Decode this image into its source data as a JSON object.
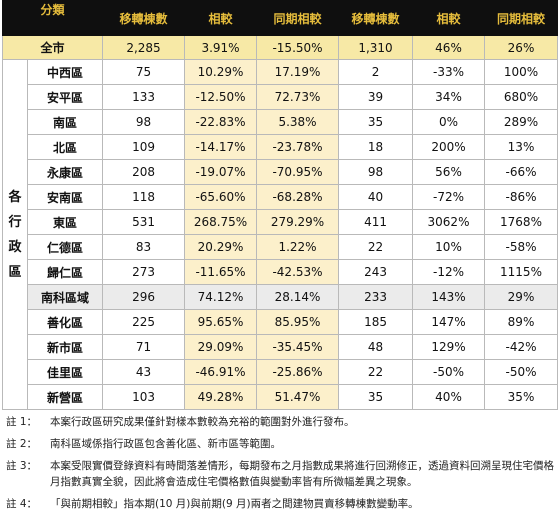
{
  "header": {
    "category": "分類",
    "col1": "移轉棟數",
    "col2": "相較",
    "col3": "同期相較",
    "col4": "移轉棟數",
    "col5": "相較",
    "col6": "同期相較"
  },
  "total": {
    "name": "全市",
    "values": [
      "2,285",
      "3.91%",
      "-15.50%",
      "1,310",
      "46%",
      "26%"
    ]
  },
  "group_label": [
    "各",
    "行",
    "政",
    "區"
  ],
  "districts": [
    {
      "name": "中西區",
      "values": [
        "75",
        "10.29%",
        "17.19%",
        "2",
        "-33%",
        "100%"
      ]
    },
    {
      "name": "安平區",
      "values": [
        "133",
        "-12.50%",
        "72.73%",
        "39",
        "34%",
        "680%"
      ]
    },
    {
      "name": "南區",
      "values": [
        "98",
        "-22.83%",
        "5.38%",
        "35",
        "0%",
        "289%"
      ]
    },
    {
      "name": "北區",
      "values": [
        "109",
        "-14.17%",
        "-23.78%",
        "18",
        "200%",
        "13%"
      ]
    },
    {
      "name": "永康區",
      "values": [
        "208",
        "-19.07%",
        "-70.95%",
        "98",
        "56%",
        "-66%"
      ]
    },
    {
      "name": "安南區",
      "values": [
        "118",
        "-65.60%",
        "-68.28%",
        "40",
        "-72%",
        "-86%"
      ]
    },
    {
      "name": "東區",
      "values": [
        "531",
        "268.75%",
        "279.29%",
        "411",
        "3062%",
        "1768%"
      ]
    },
    {
      "name": "仁德區",
      "values": [
        "83",
        "20.29%",
        "1.22%",
        "22",
        "10%",
        "-58%"
      ]
    },
    {
      "name": "歸仁區",
      "values": [
        "273",
        "-11.65%",
        "-42.53%",
        "243",
        "-12%",
        "1115%"
      ]
    }
  ],
  "nanke": {
    "name": "南科區域",
    "values": [
      "296",
      "74.12%",
      "28.14%",
      "233",
      "143%",
      "29%"
    ]
  },
  "nanke_districts": [
    {
      "name": "善化區",
      "values": [
        "225",
        "95.65%",
        "85.95%",
        "185",
        "147%",
        "89%"
      ]
    },
    {
      "name": "新市區",
      "values": [
        "71",
        "29.09%",
        "-35.45%",
        "48",
        "129%",
        "-42%"
      ]
    },
    {
      "name": "佳里區",
      "values": [
        "43",
        "-46.91%",
        "-25.86%",
        "22",
        "-50%",
        "-50%"
      ]
    },
    {
      "name": "新營區",
      "values": [
        "103",
        "49.28%",
        "51.47%",
        "35",
        "40%",
        "35%"
      ]
    }
  ],
  "notes": [
    {
      "label": "註 1：",
      "text": "本案行政區研究成果僅針對樣本數較為充裕的範圍對外進行發布。"
    },
    {
      "label": "註 2：",
      "text": "南科區域係指行政區包含善化區、新市區等範圍。"
    },
    {
      "label": "註 3：",
      "text": "本案受限實價登錄資料有時間落差情形，每期發布之月指數成果將進行回溯修正，透過資料回溯呈現住宅價格月指數真實全貌，因此將會造成住宅價格數值與變動率皆有所微幅差異之現象。"
    },
    {
      "label": "註 4：",
      "text": "「與前期相較」指本期(10 月)與前期(9 月)兩者之間建物買賣移轉棟數變動率。"
    }
  ]
}
